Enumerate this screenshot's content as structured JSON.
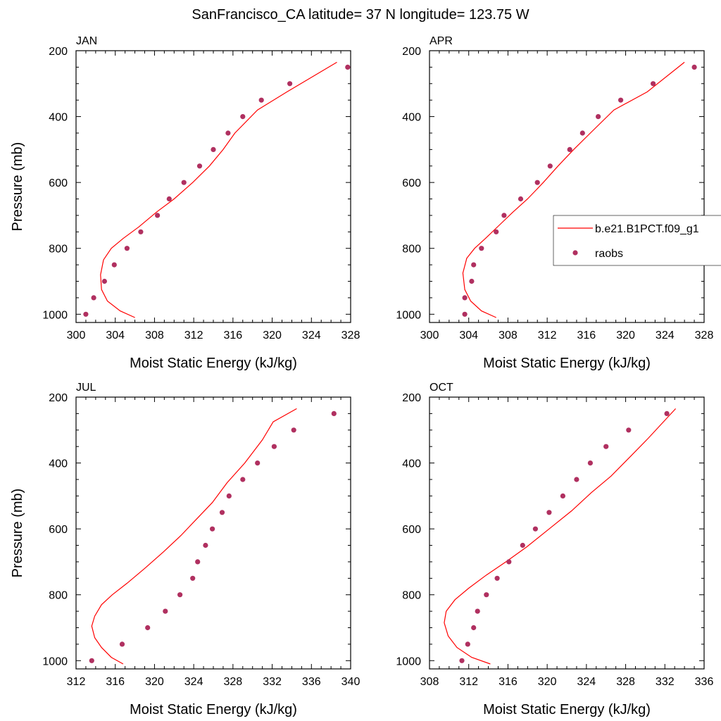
{
  "figure": {
    "title": "SanFrancisco_CA  latitude= 37 N longitude= 123.75 W"
  },
  "legend": {
    "entries": [
      {
        "label": "b.e21.B1PCT.f09_g1",
        "kind": "line",
        "color": "#ff0000"
      },
      {
        "label": "raobs",
        "kind": "marker",
        "color": "#b03060"
      }
    ]
  },
  "colors": {
    "model": "#ff0000",
    "obs": "#b03060"
  },
  "chart_data": [
    {
      "type": "scatter",
      "panel": "JAN",
      "title": "JAN",
      "xlabel": "Moist Static Energy (kJ/kg)",
      "ylabel": "Pressure (mb)",
      "xlim": [
        300,
        328
      ],
      "ylim": [
        1025,
        200
      ],
      "xticks": [
        300,
        304,
        308,
        312,
        316,
        320,
        324,
        328
      ],
      "yticks": [
        200,
        400,
        600,
        800,
        1000
      ],
      "series": [
        {
          "name": "b.e21.B1PCT.f09_g1",
          "kind": "line",
          "x": [
            306.0,
            304.5,
            303.2,
            302.6,
            302.5,
            302.8,
            303.6,
            304.8,
            306.4,
            308.2,
            310.0,
            311.9,
            313.6,
            315.0,
            316.2,
            318.5,
            321.5,
            326.6
          ],
          "y": [
            1010,
            990,
            960,
            925,
            880,
            835,
            800,
            770,
            735,
            690,
            650,
            600,
            550,
            500,
            450,
            380,
            325,
            235
          ]
        },
        {
          "name": "raobs",
          "kind": "marker",
          "x": [
            301.0,
            301.8,
            302.9,
            303.9,
            305.2,
            306.6,
            308.3,
            309.5,
            311.0,
            312.6,
            314.0,
            315.5,
            317.0,
            318.9,
            321.8,
            327.7
          ],
          "y": [
            1000,
            950,
            900,
            850,
            800,
            750,
            700,
            650,
            600,
            550,
            500,
            450,
            400,
            350,
            300,
            250
          ]
        }
      ]
    },
    {
      "type": "scatter",
      "panel": "APR",
      "title": "APR",
      "xlabel": "Moist Static Energy (kJ/kg)",
      "ylabel": "",
      "xlim": [
        300,
        328
      ],
      "ylim": [
        1025,
        200
      ],
      "xticks": [
        300,
        304,
        308,
        312,
        316,
        320,
        324,
        328
      ],
      "yticks": [
        200,
        400,
        600,
        800,
        1000
      ],
      "series": [
        {
          "name": "b.e21.B1PCT.f09_g1",
          "kind": "line",
          "x": [
            306.8,
            305.3,
            304.2,
            303.6,
            303.4,
            303.8,
            304.6,
            305.7,
            307.1,
            308.5,
            310.0,
            311.6,
            313.1,
            314.7,
            316.4,
            318.8,
            322.2,
            326.0
          ],
          "y": [
            1010,
            990,
            960,
            925,
            875,
            830,
            800,
            770,
            730,
            690,
            650,
            600,
            550,
            500,
            450,
            380,
            325,
            235
          ]
        },
        {
          "name": "raobs",
          "kind": "marker",
          "x": [
            303.6,
            303.6,
            304.3,
            304.5,
            305.3,
            306.8,
            307.6,
            309.3,
            311.0,
            312.3,
            314.3,
            315.6,
            317.2,
            319.5,
            322.8,
            327.0
          ],
          "y": [
            1000,
            950,
            900,
            850,
            800,
            750,
            700,
            650,
            600,
            550,
            500,
            450,
            400,
            350,
            300,
            250
          ]
        }
      ]
    },
    {
      "type": "scatter",
      "panel": "JUL",
      "title": "JUL",
      "xlabel": "Moist Static Energy (kJ/kg)",
      "ylabel": "Pressure (mb)",
      "xlim": [
        312,
        340
      ],
      "ylim": [
        1025,
        200
      ],
      "xticks": [
        312,
        316,
        320,
        324,
        328,
        332,
        336,
        340
      ],
      "yticks": [
        200,
        400,
        600,
        800,
        1000
      ],
      "series": [
        {
          "name": "b.e21.B1PCT.f09_g1",
          "kind": "line",
          "x": [
            316.8,
            315.6,
            314.6,
            313.9,
            313.6,
            313.9,
            314.6,
            315.7,
            317.2,
            319.0,
            320.9,
            322.7,
            324.3,
            325.9,
            327.4,
            329.2,
            331.0,
            332.1,
            334.5
          ],
          "y": [
            1010,
            990,
            960,
            930,
            895,
            865,
            830,
            800,
            765,
            720,
            670,
            620,
            570,
            520,
            460,
            400,
            330,
            275,
            235
          ]
        },
        {
          "name": "raobs",
          "kind": "marker",
          "x": [
            313.6,
            316.7,
            319.3,
            321.1,
            322.6,
            323.9,
            324.4,
            325.2,
            325.9,
            326.9,
            327.6,
            329.0,
            330.5,
            332.2,
            334.2,
            338.3
          ],
          "y": [
            1000,
            950,
            900,
            850,
            800,
            750,
            700,
            650,
            600,
            550,
            500,
            450,
            400,
            350,
            300,
            250
          ]
        }
      ]
    },
    {
      "type": "scatter",
      "panel": "OCT",
      "title": "OCT",
      "xlabel": "Moist Static Energy (kJ/kg)",
      "ylabel": "",
      "xlim": [
        308,
        336
      ],
      "ylim": [
        1025,
        200
      ],
      "xticks": [
        308,
        312,
        316,
        320,
        324,
        328,
        332,
        336
      ],
      "yticks": [
        200,
        400,
        600,
        800,
        1000
      ],
      "series": [
        {
          "name": "b.e21.B1PCT.f09_g1",
          "kind": "line",
          "x": [
            314.2,
            312.3,
            310.8,
            309.9,
            309.5,
            309.7,
            310.6,
            312.0,
            313.8,
            315.8,
            317.9,
            320.2,
            322.5,
            324.5,
            326.5,
            328.5,
            330.3,
            333.1
          ],
          "y": [
            1010,
            990,
            960,
            925,
            885,
            850,
            815,
            780,
            740,
            700,
            655,
            600,
            545,
            490,
            440,
            380,
            325,
            235
          ]
        },
        {
          "name": "raobs",
          "kind": "marker",
          "x": [
            311.3,
            311.9,
            312.5,
            312.9,
            313.8,
            314.9,
            316.1,
            317.5,
            318.8,
            320.2,
            321.6,
            323.0,
            324.4,
            326.0,
            328.3,
            332.2
          ],
          "y": [
            1000,
            950,
            900,
            850,
            800,
            750,
            700,
            650,
            600,
            550,
            500,
            450,
            400,
            350,
            300,
            250
          ]
        }
      ]
    }
  ]
}
